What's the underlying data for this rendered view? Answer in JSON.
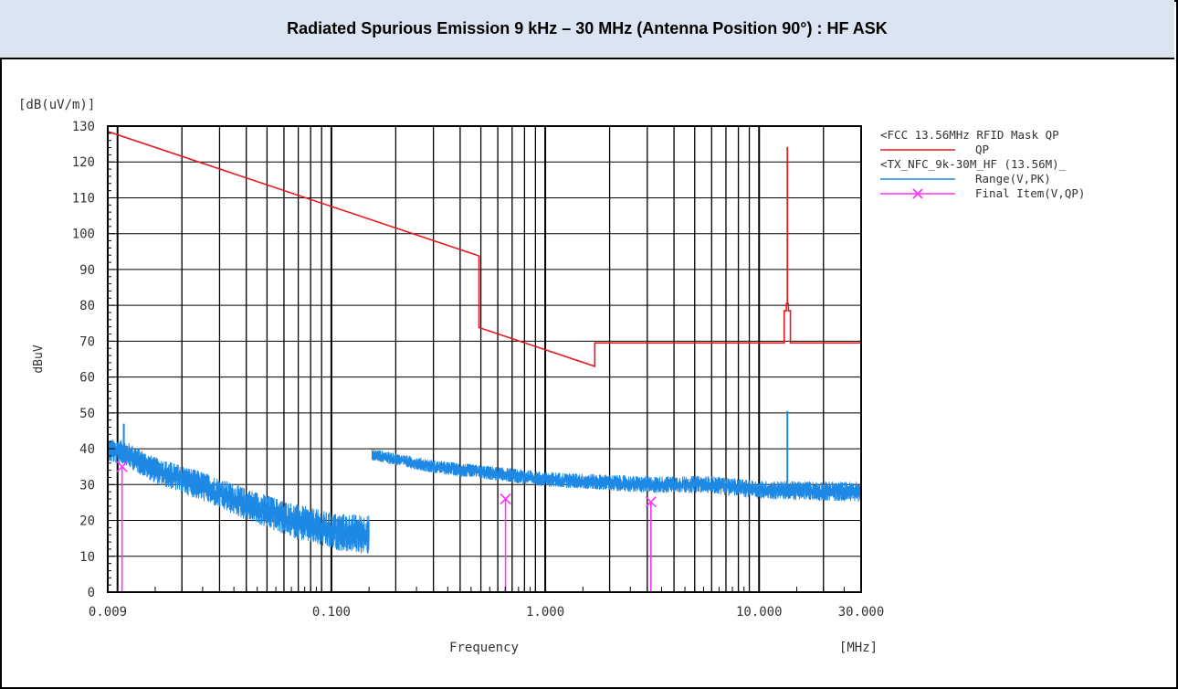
{
  "header": {
    "title": "Radiated Spurious Emission 9 kHz – 30 MHz (Antenna Position 90°) : HF ASK"
  },
  "chart_data": {
    "type": "line",
    "x_scale": "log",
    "xlim": [
      0.009,
      30
    ],
    "ylim": [
      0,
      130
    ],
    "y_unit_label": "[dB(uV/m)]",
    "ylabel": "dBuV",
    "xlabel": "Frequency",
    "x_unit_label": "[MHz]",
    "x_tick_labels": [
      {
        "value": 0.009,
        "label": "0.009"
      },
      {
        "value": 0.1,
        "label": "0.100"
      },
      {
        "value": 1,
        "label": "1.000"
      },
      {
        "value": 10,
        "label": "10.000"
      },
      {
        "value": 30,
        "label": "30.000"
      }
    ],
    "y_ticks": [
      0,
      10,
      20,
      30,
      40,
      50,
      60,
      70,
      80,
      90,
      100,
      110,
      120,
      130
    ],
    "grid": true,
    "legend_position": "right",
    "legend": [
      {
        "title": "<FCC 13.56MHz RFID Mask QP",
        "entries": [
          {
            "name": "QP",
            "color": "#e8191c",
            "marker": "line"
          }
        ]
      },
      {
        "title": "<TX_NFC_9k-30M_HF (13.56M)_",
        "entries": [
          {
            "name": "Range(V,PK)",
            "color": "#1e88e5",
            "marker": "line"
          },
          {
            "name": "Final Item(V,QP)",
            "color": "#ff33ff",
            "marker": "x"
          }
        ]
      }
    ],
    "series": [
      {
        "name": "QP",
        "color": "#e8191c",
        "x": [
          0.009,
          0.49,
          0.49,
          1.705,
          1.705,
          13.11,
          13.11,
          13.41,
          13.41,
          13.553,
          13.553,
          13.567,
          13.567,
          13.71,
          13.71,
          14.01,
          14.01,
          30
        ],
        "y": [
          128.5,
          93.8,
          73.8,
          63.0,
          69.5,
          69.5,
          78.5,
          78.5,
          80.5,
          80.5,
          124.0,
          124.0,
          80.5,
          80.5,
          78.5,
          78.5,
          69.5,
          69.5
        ]
      },
      {
        "name": "Range(V,PK)",
        "color": "#1e88e5",
        "envelope": [
          {
            "x": 0.009,
            "y": 39.5
          },
          {
            "x": 0.0107,
            "y": 39.0
          },
          {
            "x": 0.015,
            "y": 34.0
          },
          {
            "x": 0.025,
            "y": 29.5
          },
          {
            "x": 0.04,
            "y": 24.5
          },
          {
            "x": 0.07,
            "y": 19.5
          },
          {
            "x": 0.1,
            "y": 17.0
          },
          {
            "x": 0.15,
            "y": 16.0
          }
        ],
        "envelope2": [
          {
            "x": 0.15,
            "y": 38.5
          },
          {
            "x": 0.3,
            "y": 35.0
          },
          {
            "x": 0.6,
            "y": 33.0
          },
          {
            "x": 1.0,
            "y": 31.5
          },
          {
            "x": 3.0,
            "y": 30.0
          },
          {
            "x": 6.0,
            "y": 30.0
          },
          {
            "x": 10.0,
            "y": 28.5
          },
          {
            "x": 30.0,
            "y": 28.0
          }
        ],
        "spikes": [
          {
            "x": 0.0107,
            "y": 47.0
          },
          {
            "x": 13.56,
            "y": 50.5
          }
        ]
      },
      {
        "name": "Final Item(V,QP)",
        "color": "#ff33ff",
        "points": [
          {
            "x": 0.0105,
            "y": 35.0
          },
          {
            "x": 0.652,
            "y": 26.0
          },
          {
            "x": 3.12,
            "y": 25.2
          }
        ]
      }
    ]
  }
}
